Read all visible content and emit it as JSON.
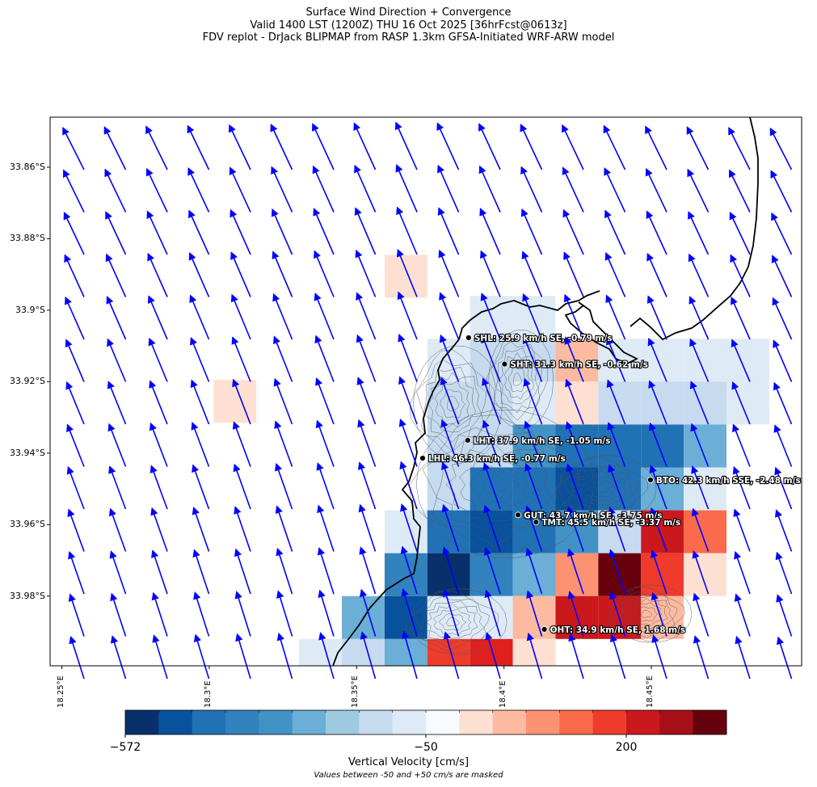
{
  "title": {
    "line1": "Surface Wind Direction + Convergence",
    "line2": "Valid 1400 LST (1200Z) THU 16 Oct 2025 [36hrFcst@0613z]",
    "line3": "FDV replot - DrJack BLIPMAP from RASP 1.3km GFSA-Initiated WRF-ARW model"
  },
  "axes": {
    "lat_ticks": [
      "33.86°S",
      "33.88°S",
      "33.9°S",
      "33.92°S",
      "33.94°S",
      "33.96°S",
      "33.98°S"
    ],
    "lon_ticks": [
      "18.25°E",
      "18.3°E",
      "18.35°E",
      "18.4°E",
      "18.45°E"
    ],
    "lat_range": [
      -33.9995,
      -33.846
    ],
    "lon_range": [
      18.246,
      18.501
    ]
  },
  "stations": [
    {
      "label": "SHL: 25.9 km/h SE, -0.79 m/s",
      "lon": 18.388,
      "lat": -33.9077
    },
    {
      "label": "SHT: 31.3 km/h SE, -0.62 m/s",
      "lon": 18.4002,
      "lat": -33.9151
    },
    {
      "label": "LHT: 37.9 km/h SE, -1.05 m/s",
      "lon": 18.3877,
      "lat": -33.9364
    },
    {
      "label": "LHL: 46.3 km/h SE, -0.77 m/s",
      "lon": 18.3724,
      "lat": -33.9414
    },
    {
      "label": "BTO: 42.3 km/h SSE, -2.48 m/s",
      "lon": 18.4497,
      "lat": -33.9475
    },
    {
      "label": "GUT: 43.7 km/h SE, -3.75 m/s",
      "lon": 18.4048,
      "lat": -33.9573
    },
    {
      "label": "TMT: 45.5 km/h SE, -3.37 m/s",
      "lon": 18.4109,
      "lat": -33.9593
    },
    {
      "label": "OHT: 34.9 km/h SE, 1.68 m/s",
      "lon": 18.4137,
      "lat": -33.9893
    }
  ],
  "convergence_grid": {
    "cells": [
      {
        "lon0": 18.3595,
        "lat0": -33.8845,
        "level": 1
      },
      {
        "lon0": 18.3015,
        "lat0": -33.9195,
        "level": 1
      },
      {
        "lon0": 18.3885,
        "lat0": -33.896,
        "level": -1
      },
      {
        "lon0": 18.403,
        "lat0": -33.896,
        "level": -1
      },
      {
        "lon0": 18.374,
        "lat0": -33.908,
        "level": -1
      },
      {
        "lon0": 18.3885,
        "lat0": -33.908,
        "level": -2
      },
      {
        "lon0": 18.403,
        "lat0": -33.908,
        "level": -2
      },
      {
        "lon0": 18.4175,
        "lat0": -33.908,
        "level": 2
      },
      {
        "lon0": 18.432,
        "lat0": -33.908,
        "level": -1
      },
      {
        "lon0": 18.4465,
        "lat0": -33.908,
        "level": -1
      },
      {
        "lon0": 18.461,
        "lat0": -33.908,
        "level": -1
      },
      {
        "lon0": 18.4755,
        "lat0": -33.908,
        "level": -1
      },
      {
        "lon0": 18.374,
        "lat0": -33.92,
        "level": -2
      },
      {
        "lon0": 18.3885,
        "lat0": -33.92,
        "level": -2
      },
      {
        "lon0": 18.403,
        "lat0": -33.92,
        "level": -1
      },
      {
        "lon0": 18.4175,
        "lat0": -33.92,
        "level": 1
      },
      {
        "lon0": 18.432,
        "lat0": -33.92,
        "level": -2
      },
      {
        "lon0": 18.4465,
        "lat0": -33.92,
        "level": -2
      },
      {
        "lon0": 18.461,
        "lat0": -33.92,
        "level": -2
      },
      {
        "lon0": 18.4755,
        "lat0": -33.92,
        "level": -1
      },
      {
        "lon0": 18.374,
        "lat0": -33.932,
        "level": -2
      },
      {
        "lon0": 18.3885,
        "lat0": -33.932,
        "level": -2
      },
      {
        "lon0": 18.403,
        "lat0": -33.932,
        "level": -4
      },
      {
        "lon0": 18.4175,
        "lat0": -33.932,
        "level": -6
      },
      {
        "lon0": 18.432,
        "lat0": -33.932,
        "level": -6
      },
      {
        "lon0": 18.4465,
        "lat0": -33.932,
        "level": -6
      },
      {
        "lon0": 18.461,
        "lat0": -33.932,
        "level": -3
      },
      {
        "lon0": 18.374,
        "lat0": -33.944,
        "level": -2
      },
      {
        "lon0": 18.3885,
        "lat0": -33.944,
        "level": -6
      },
      {
        "lon0": 18.403,
        "lat0": -33.944,
        "level": -6
      },
      {
        "lon0": 18.4175,
        "lat0": -33.944,
        "level": -7
      },
      {
        "lon0": 18.432,
        "lat0": -33.944,
        "level": -6
      },
      {
        "lon0": 18.4465,
        "lat0": -33.944,
        "level": -3
      },
      {
        "lon0": 18.461,
        "lat0": -33.944,
        "level": -1
      },
      {
        "lon0": 18.3595,
        "lat0": -33.956,
        "level": -1
      },
      {
        "lon0": 18.374,
        "lat0": -33.956,
        "level": -6
      },
      {
        "lon0": 18.3885,
        "lat0": -33.956,
        "level": -7
      },
      {
        "lon0": 18.403,
        "lat0": -33.956,
        "level": -6
      },
      {
        "lon0": 18.4175,
        "lat0": -33.956,
        "level": -4
      },
      {
        "lon0": 18.432,
        "lat0": -33.956,
        "level": -2
      },
      {
        "lon0": 18.4465,
        "lat0": -33.956,
        "level": 6
      },
      {
        "lon0": 18.461,
        "lat0": -33.956,
        "level": 4
      },
      {
        "lon0": 18.3595,
        "lat0": -33.968,
        "level": -5
      },
      {
        "lon0": 18.374,
        "lat0": -33.968,
        "level": -8
      },
      {
        "lon0": 18.3885,
        "lat0": -33.968,
        "level": -5
      },
      {
        "lon0": 18.403,
        "lat0": -33.968,
        "level": -3
      },
      {
        "lon0": 18.4175,
        "lat0": -33.968,
        "level": 3
      },
      {
        "lon0": 18.432,
        "lat0": -33.968,
        "level": 8
      },
      {
        "lon0": 18.4465,
        "lat0": -33.968,
        "level": 5
      },
      {
        "lon0": 18.461,
        "lat0": -33.968,
        "level": 1
      },
      {
        "lon0": 18.345,
        "lat0": -33.98,
        "level": -3
      },
      {
        "lon0": 18.3595,
        "lat0": -33.98,
        "level": -7
      },
      {
        "lon0": 18.374,
        "lat0": -33.98,
        "level": -1
      },
      {
        "lon0": 18.3885,
        "lat0": -33.98,
        "level": -1
      },
      {
        "lon0": 18.403,
        "lat0": -33.98,
        "level": 2
      },
      {
        "lon0": 18.4175,
        "lat0": -33.98,
        "level": 6
      },
      {
        "lon0": 18.432,
        "lat0": -33.98,
        "level": 6
      },
      {
        "lon0": 18.4465,
        "lat0": -33.98,
        "level": 2
      },
      {
        "lon0": 18.3305,
        "lat0": -33.992,
        "level": -1
      },
      {
        "lon0": 18.345,
        "lat0": -33.992,
        "level": -2
      },
      {
        "lon0": 18.3595,
        "lat0": -33.992,
        "level": -3
      },
      {
        "lon0": 18.374,
        "lat0": -33.992,
        "level": 5
      },
      {
        "lon0": 18.3885,
        "lat0": -33.992,
        "level": 7
      },
      {
        "lon0": 18.403,
        "lat0": -33.992,
        "level": 1
      }
    ]
  },
  "wind_field": {
    "arrow_color": "#0000ff",
    "direction": "SE"
  },
  "colorbar": {
    "label": "Vertical Velocity [cm/s]",
    "note": "Values between -50 and +50 cm/s are masked",
    "ticks": [
      {
        "text": "−572",
        "index": 0
      },
      {
        "text": "−50",
        "index": 9
      },
      {
        "text": "200",
        "index": 15
      }
    ],
    "colors": [
      "#08306b",
      "#08519c",
      "#2171b5",
      "#3182bd",
      "#4292c6",
      "#6baed6",
      "#9ecae1",
      "#c6dbef",
      "#deebf7",
      "#f7fbff",
      "#fee0d2",
      "#fcbba1",
      "#fc9272",
      "#fb6a4a",
      "#ef3b2c",
      "#cb181d",
      "#a50f15",
      "#67000d"
    ]
  },
  "level_colors": {
    "-8": "#08306b",
    "-7": "#08519c",
    "-6": "#2171b5",
    "-5": "#3182bd",
    "-4": "#4292c6",
    "-3": "#6baed6",
    "-2": "#c6dbef",
    "-1": "#deebf7",
    "1": "#fee0d2",
    "2": "#fcbba1",
    "3": "#fc9272",
    "4": "#fb6a4a",
    "5": "#ef3b2c",
    "6": "#cb181d",
    "7": "#e0201e",
    "8": "#67000d"
  }
}
